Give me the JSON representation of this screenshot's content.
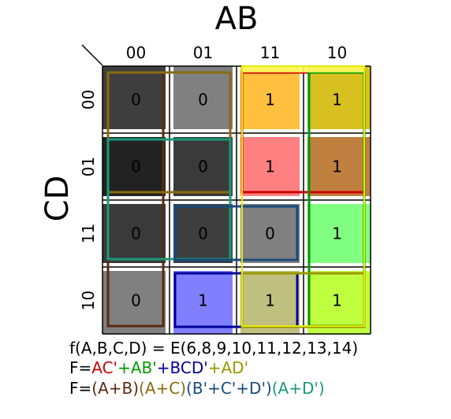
{
  "title_ab": "AB",
  "title_cd": "CD",
  "col_headers": [
    "00",
    "01",
    "11",
    "10"
  ],
  "row_headers": [
    "00",
    "01",
    "11",
    "10"
  ],
  "cells": [
    [
      "0",
      "0",
      "1",
      "1"
    ],
    [
      "0",
      "0",
      "1",
      "1"
    ],
    [
      "0",
      "0",
      "0",
      "1"
    ],
    [
      "0",
      "1",
      "1",
      "1"
    ]
  ],
  "cell_shades": [
    [
      "#3e3e3e",
      "#808080",
      "#ffc040",
      "#d8c020"
    ],
    [
      "#222222",
      "#3a3a3a",
      "#ff8080",
      "#c08040"
    ],
    [
      "#3a3a3a",
      "#3e3e3e",
      "#808080",
      "#80ff80"
    ],
    [
      "#808080",
      "#8080ff",
      "#c0c080",
      "#c0ff40"
    ]
  ],
  "group_colors": {
    "ac_prime": "#cc0000",
    "ab_prime": "#009900",
    "bcd_prime": "#000099",
    "ad_prime": "#999900",
    "a_plus_b": "#5a2a10",
    "a_plus_c": "#8a6a10",
    "b_c_d": "#174a7e",
    "a_plus_d": "#1a9a7a"
  },
  "formulas": {
    "line1": "f(A,B,C,D) = E(6,8,9,10,11,12,13,14)",
    "line2": [
      {
        "text": "F=",
        "color": "#000000"
      },
      {
        "text": "AC'",
        "color": "#cc0000"
      },
      {
        "text": "+AB'",
        "color": "#009900"
      },
      {
        "text": "+BCD'",
        "color": "#000099"
      },
      {
        "text": "+AD'",
        "color": "#999900"
      }
    ],
    "line3": [
      {
        "text": "F=",
        "color": "#000000"
      },
      {
        "text": "(A+B)",
        "color": "#5a2a10"
      },
      {
        "text": "(A+C)",
        "color": "#8a6a10"
      },
      {
        "text": "(B'+C'+D')",
        "color": "#174a7e"
      },
      {
        "text": "(A+D')",
        "color": "#1a9a7a"
      }
    ]
  }
}
